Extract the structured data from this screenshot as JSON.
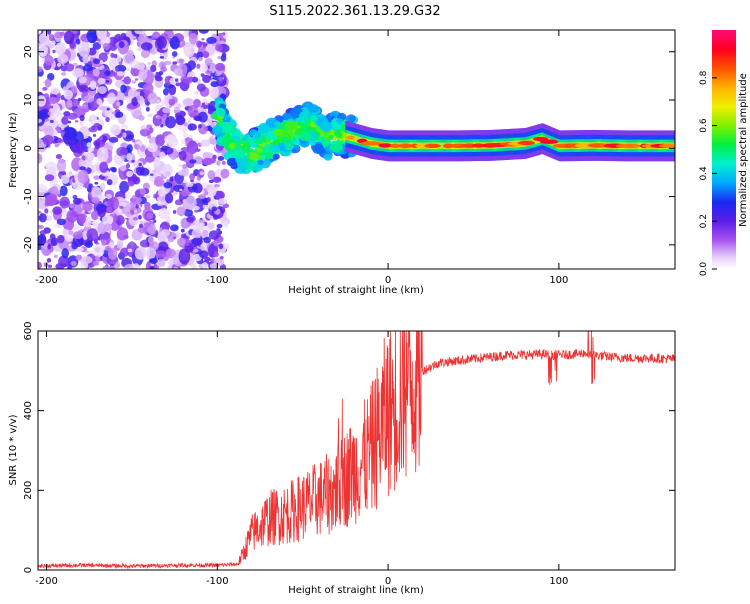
{
  "title": "S115.2022.361.13.29.G32",
  "chart_data": [
    {
      "type": "heatmap",
      "xlabel": "Height of straight line (km)",
      "ylabel": "Frequency (Hz)",
      "xlim": [
        -205,
        168
      ],
      "ylim": [
        -25,
        24.5
      ],
      "x_ticks": [
        -200,
        -100,
        0,
        100
      ],
      "y_ticks": [
        -20,
        -10,
        0,
        10,
        20
      ],
      "colorbar": {
        "label": "Normalized spectral amplitude",
        "range": [
          0,
          1
        ],
        "ticks": [
          "0.0",
          "0.2",
          "0.4",
          "0.6",
          "0.8"
        ]
      },
      "ridge": {
        "x": [
          -100,
          -90,
          -80,
          -70,
          -60,
          -50,
          -45,
          -40,
          -35,
          -30,
          -20,
          -10,
          0,
          20,
          40,
          60,
          80,
          90,
          100,
          120,
          140,
          168
        ],
        "freq": [
          7,
          0,
          -1,
          1,
          3,
          4.5,
          5,
          3.5,
          2,
          3,
          2,
          1,
          0.5,
          0.5,
          0.5,
          0.6,
          1,
          2,
          0.5,
          0.6,
          0.5,
          0.5
        ]
      }
    },
    {
      "type": "line",
      "xlabel": "Height of straight line (km)",
      "ylabel": "SNR (10 * v/v)",
      "xlim": [
        -205,
        168
      ],
      "ylim": [
        0,
        600
      ],
      "x_ticks": [
        -200,
        -100,
        0,
        100
      ],
      "y_ticks": [
        0,
        200,
        400,
        600
      ],
      "series": [
        {
          "name": "SNR",
          "color": "#ee3333",
          "x": [
            -205,
            -180,
            -150,
            -120,
            -100,
            -88,
            -85,
            -80,
            -70,
            -60,
            -50,
            -40,
            -30,
            -25,
            -20,
            -15,
            -10,
            -5,
            0,
            5,
            10,
            20,
            30,
            40,
            50,
            60,
            70,
            80,
            90,
            95,
            100,
            110,
            115,
            120,
            130,
            140,
            150,
            168
          ],
          "y": [
            10,
            12,
            10,
            12,
            12,
            15,
            40,
            90,
            130,
            140,
            160,
            180,
            200,
            230,
            250,
            270,
            300,
            350,
            400,
            430,
            470,
            500,
            520,
            525,
            530,
            535,
            540,
            540,
            542,
            540,
            540,
            542,
            545,
            540,
            535,
            532,
            532,
            530
          ]
        }
      ]
    }
  ]
}
